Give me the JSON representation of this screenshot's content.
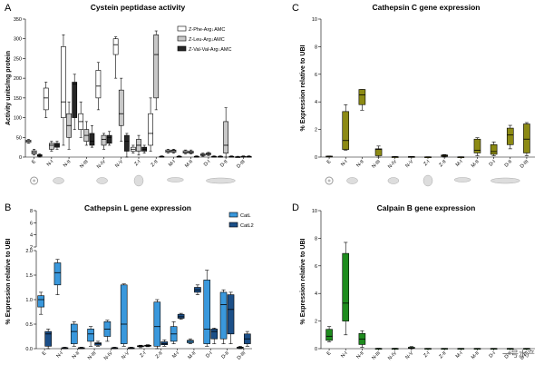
{
  "chart_data": [
    {
      "id": "A",
      "panel_label": "A",
      "type": "boxplot",
      "title": "Cystein peptidase activity",
      "ylabel": "Activity units/mg protein",
      "ylim": [
        0,
        350
      ],
      "yticks": [
        0,
        50,
        100,
        150,
        200,
        250,
        300,
        350
      ],
      "categories": [
        "E",
        "N-I",
        "N-II",
        "N-III",
        "N-IV",
        "N-V",
        "Z-I",
        "Z-II",
        "M-I",
        "M-II",
        "D-I",
        "D-II",
        "D-III"
      ],
      "legend": [
        "Z-Phe-Arg↓AMC",
        "Z-Leu-Arg↓AMC",
        "Z-Val-Val-Arg↓AMC"
      ],
      "series": [
        {
          "name": "Z-Phe-Arg↓AMC",
          "color": "#ffffff",
          "boxes": [
            [
              35,
              37,
              40,
              43,
              45
            ],
            [
              100,
              120,
              150,
              175,
              190
            ],
            [
              30,
              100,
              140,
              280,
              310
            ],
            [
              50,
              70,
              90,
              110,
              140
            ],
            [
              120,
              150,
              180,
              220,
              240
            ],
            [
              200,
              260,
              285,
              300,
              305
            ],
            [
              10,
              15,
              20,
              25,
              30
            ],
            [
              15,
              30,
              60,
              110,
              150
            ],
            [
              10,
              12,
              15,
              18,
              20
            ],
            [
              8,
              10,
              13,
              16,
              18
            ],
            [
              2,
              4,
              6,
              8,
              10
            ],
            [
              0,
              0,
              1,
              2,
              3
            ],
            [
              0,
              0,
              0,
              1,
              2
            ]
          ]
        },
        {
          "name": "Z-Leu-Arg↓AMC",
          "color": "#c8c8c8",
          "boxes": [
            [
              5,
              8,
              12,
              16,
              20
            ],
            [
              15,
              20,
              30,
              35,
              40
            ],
            [
              20,
              50,
              80,
              110,
              140
            ],
            [
              30,
              40,
              55,
              70,
              90
            ],
            [
              20,
              30,
              45,
              55,
              60
            ],
            [
              40,
              80,
              110,
              170,
              200
            ],
            [
              5,
              15,
              30,
              45,
              55
            ],
            [
              120,
              150,
              260,
              310,
              320
            ],
            [
              10,
              12,
              16,
              18,
              20
            ],
            [
              8,
              10,
              12,
              15,
              18
            ],
            [
              4,
              6,
              8,
              10,
              12
            ],
            [
              0,
              10,
              30,
              90,
              125
            ],
            [
              0,
              0,
              1,
              2,
              3
            ]
          ]
        },
        {
          "name": "Z-Val-Val-Arg↓AMC",
          "color": "#262626",
          "boxes": [
            [
              0,
              2,
              4,
              6,
              8
            ],
            [
              20,
              25,
              30,
              35,
              40
            ],
            [
              70,
              100,
              185,
              190,
              210
            ],
            [
              25,
              30,
              40,
              60,
              80
            ],
            [
              30,
              35,
              50,
              55,
              65
            ],
            [
              0,
              15,
              40,
              55,
              60
            ],
            [
              10,
              15,
              20,
              25,
              30
            ],
            [
              0,
              0,
              1,
              2,
              3
            ],
            [
              0,
              0,
              1,
              2,
              3
            ],
            [
              0,
              0,
              1,
              2,
              3
            ],
            [
              0,
              0,
              1,
              2,
              3
            ],
            [
              0,
              0,
              1,
              2,
              3
            ],
            [
              0,
              0,
              1,
              2,
              3
            ]
          ]
        }
      ]
    },
    {
      "id": "B",
      "panel_label": "B",
      "type": "boxplot",
      "title": "Cathepsin L gene expression",
      "ylabel": "% Expression relative to UBI",
      "ylim_lower": [
        0,
        2.0
      ],
      "yticks_lower": [
        "0.0",
        "0.5",
        "1.0",
        "1.5",
        "2.0"
      ],
      "ylim_upper": [
        2,
        8
      ],
      "yticks_upper": [
        "2",
        "4",
        "6",
        "8"
      ],
      "categories": [
        "E",
        "N-I",
        "N-II",
        "N-III",
        "N-IV",
        "N-V",
        "Z-I",
        "Z-II",
        "M-I",
        "M-II",
        "D-I",
        "D-II",
        "D-III"
      ],
      "legend": [
        "CatL",
        "CatL2"
      ],
      "series": [
        {
          "name": "CatL",
          "color": "#3a98dc",
          "boxes": [
            [
              0.7,
              0.85,
              1.0,
              1.08,
              1.15
            ],
            [
              1.1,
              1.3,
              1.55,
              1.75,
              1.82
            ],
            [
              0.05,
              0.1,
              0.35,
              0.5,
              0.55
            ],
            [
              0.05,
              0.15,
              0.3,
              0.4,
              0.45
            ],
            [
              0.15,
              0.25,
              0.4,
              0.55,
              0.58
            ],
            [
              0.05,
              0.1,
              0.5,
              1.3,
              1.32
            ],
            [
              0.02,
              0.04,
              0.05,
              0.06,
              0.07
            ],
            [
              0.0,
              0.05,
              0.45,
              0.95,
              1.0
            ],
            [
              0.1,
              0.15,
              0.3,
              0.45,
              0.55
            ],
            [
              0.1,
              0.12,
              0.15,
              0.17,
              0.2
            ],
            [
              0.05,
              0.1,
              0.4,
              1.4,
              1.6
            ],
            [
              0.1,
              0.2,
              0.9,
              1.15,
              1.2
            ],
            [
              0.0,
              0.01,
              0.02,
              0.03,
              0.05
            ]
          ]
        },
        {
          "name": "CatL2",
          "color": "#1c4f88",
          "boxes": [
            [
              0.0,
              0.05,
              0.3,
              0.35,
              0.4
            ],
            [
              0.0,
              0.0,
              0.01,
              0.02,
              0.03
            ],
            [
              0.0,
              0.0,
              0.01,
              0.02,
              0.03
            ],
            [
              0.05,
              0.07,
              0.1,
              0.12,
              0.15
            ],
            [
              0.0,
              0.0,
              0.01,
              0.02,
              0.03
            ],
            [
              0.0,
              0.0,
              0.01,
              0.02,
              0.03
            ],
            [
              0.04,
              0.05,
              0.06,
              0.07,
              0.08
            ],
            [
              0.05,
              0.08,
              0.1,
              0.14,
              0.18
            ],
            [
              0.6,
              0.62,
              0.65,
              0.7,
              0.72
            ],
            [
              1.1,
              1.15,
              1.2,
              1.25,
              1.3
            ],
            [
              0.1,
              0.2,
              0.35,
              0.4,
              0.42
            ],
            [
              0.1,
              0.3,
              0.8,
              1.1,
              1.15
            ],
            [
              0.05,
              0.1,
              0.2,
              0.3,
              0.35
            ]
          ]
        }
      ]
    },
    {
      "id": "C",
      "panel_label": "C",
      "type": "boxplot",
      "title": "Cathepsin C gene expression",
      "ylabel": "% Expression relative to UBI",
      "ylim": [
        0,
        10
      ],
      "yticks": [
        0,
        2,
        4,
        6,
        8,
        10
      ],
      "categories": [
        "E",
        "N-I",
        "N-II",
        "N-III",
        "N-IV",
        "N-V",
        "Z-I",
        "Z-II",
        "M-I",
        "M-II",
        "D-I",
        "D-II",
        "D-III"
      ],
      "series": [
        {
          "name": "Cathepsin C",
          "color": "#8c8a14",
          "boxes": [
            [
              0.02,
              0.04,
              0.05,
              0.07,
              0.08
            ],
            [
              0.5,
              0.55,
              1.2,
              3.3,
              3.8
            ],
            [
              3.4,
              3.8,
              4.5,
              4.9,
              4.9
            ],
            [
              0.0,
              0.1,
              0.55,
              0.6,
              0.8
            ],
            [
              0.0,
              0.0,
              0.02,
              0.03,
              0.04
            ],
            [
              0.0,
              0.01,
              0.02,
              0.04,
              0.05
            ],
            [
              0.0,
              0.0,
              0.01,
              0.02,
              0.02
            ],
            [
              0.0,
              0.05,
              0.1,
              0.15,
              0.18
            ],
            [
              0.0,
              0.0,
              0.01,
              0.02,
              0.02
            ],
            [
              0.1,
              0.3,
              0.5,
              1.3,
              1.4
            ],
            [
              0.1,
              0.2,
              0.4,
              0.9,
              1.1
            ],
            [
              0.6,
              0.9,
              1.6,
              2.1,
              2.3
            ],
            [
              0.1,
              0.3,
              1.3,
              2.4,
              2.5
            ]
          ]
        }
      ]
    },
    {
      "id": "D",
      "panel_label": "D",
      "type": "boxplot",
      "title": "Calpain B gene expression",
      "ylabel": "% Expression relative to UBI",
      "ylim": [
        0,
        10
      ],
      "yticks": [
        0,
        2,
        4,
        6,
        8,
        10
      ],
      "categories": [
        "E",
        "N-I",
        "N-II",
        "N-III",
        "N-IV",
        "N-V",
        "Z-I",
        "Z-II",
        "M-I",
        "M-II",
        "D-I",
        "D-II",
        "D-III"
      ],
      "series": [
        {
          "name": "Calpain B",
          "color": "#1e8c1e",
          "boxes": [
            [
              0.5,
              0.6,
              0.9,
              1.4,
              1.6
            ],
            [
              1.0,
              2.0,
              3.3,
              6.9,
              7.7
            ],
            [
              0.1,
              0.3,
              0.7,
              1.1,
              1.3
            ],
            [
              0.0,
              0.0,
              0.01,
              0.02,
              0.03
            ],
            [
              0.0,
              0.0,
              0.01,
              0.02,
              0.03
            ],
            [
              0.0,
              0.02,
              0.05,
              0.1,
              0.15
            ],
            [
              0.0,
              0.0,
              0.01,
              0.02,
              0.02
            ],
            [
              0.0,
              0.0,
              0.01,
              0.02,
              0.02
            ],
            [
              0.0,
              0.0,
              0.01,
              0.02,
              0.02
            ],
            [
              0.0,
              0.0,
              0.01,
              0.02,
              0.02
            ],
            [
              0.0,
              0.0,
              0.01,
              0.02,
              0.02
            ],
            [
              0.0,
              0.0,
              0.01,
              0.02,
              0.02
            ],
            [
              0.0,
              0.0,
              0.01,
              0.02,
              0.02
            ]
          ]
        }
      ]
    }
  ],
  "watermark": "一号水产"
}
